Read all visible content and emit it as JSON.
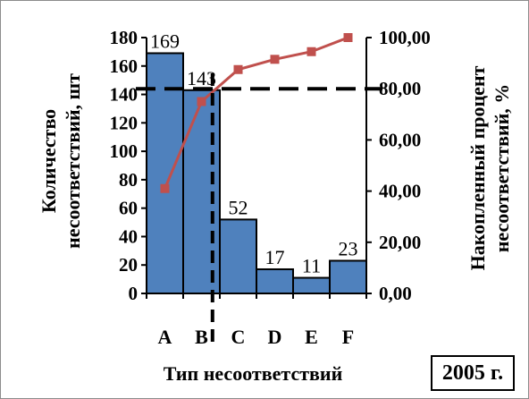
{
  "chart_data": {
    "type": "bar",
    "categories": [
      "A",
      "B",
      "C",
      "D",
      "E",
      "F"
    ],
    "series": [
      {
        "type": "bar",
        "axis": "left",
        "values": [
          169,
          143,
          52,
          17,
          11,
          23
        ],
        "data_labels": [
          "169",
          "143",
          "52",
          "17",
          "11",
          "23"
        ],
        "color": "#4f81bd"
      },
      {
        "type": "line",
        "axis": "right",
        "values": [
          41.0,
          75.0,
          87.5,
          91.5,
          94.5,
          100.0
        ],
        "color": "#c0504d"
      }
    ],
    "xlabel": "Тип   несоответствий",
    "ylabel": [
      "Количество",
      "несоответствий, шт"
    ],
    "y2label": [
      "Накопленный  процент",
      "несоответствий, %"
    ],
    "ylim": [
      0,
      180
    ],
    "yticks": [
      "0",
      "20",
      "40",
      "60",
      "80",
      "100",
      "120",
      "140",
      "160",
      "180"
    ],
    "y2lim": [
      0,
      100
    ],
    "y2ticks": [
      "0,00",
      "20,00",
      "40,00",
      "60,00",
      "80,00",
      "100,00"
    ],
    "reference_line": {
      "axis": "right",
      "value": 80,
      "style": "dashed"
    },
    "cutoff_line": {
      "category_position": 1.8,
      "style": "dashed"
    },
    "grid": false,
    "legend": "none"
  },
  "annotation": {
    "year": "2005 г."
  }
}
